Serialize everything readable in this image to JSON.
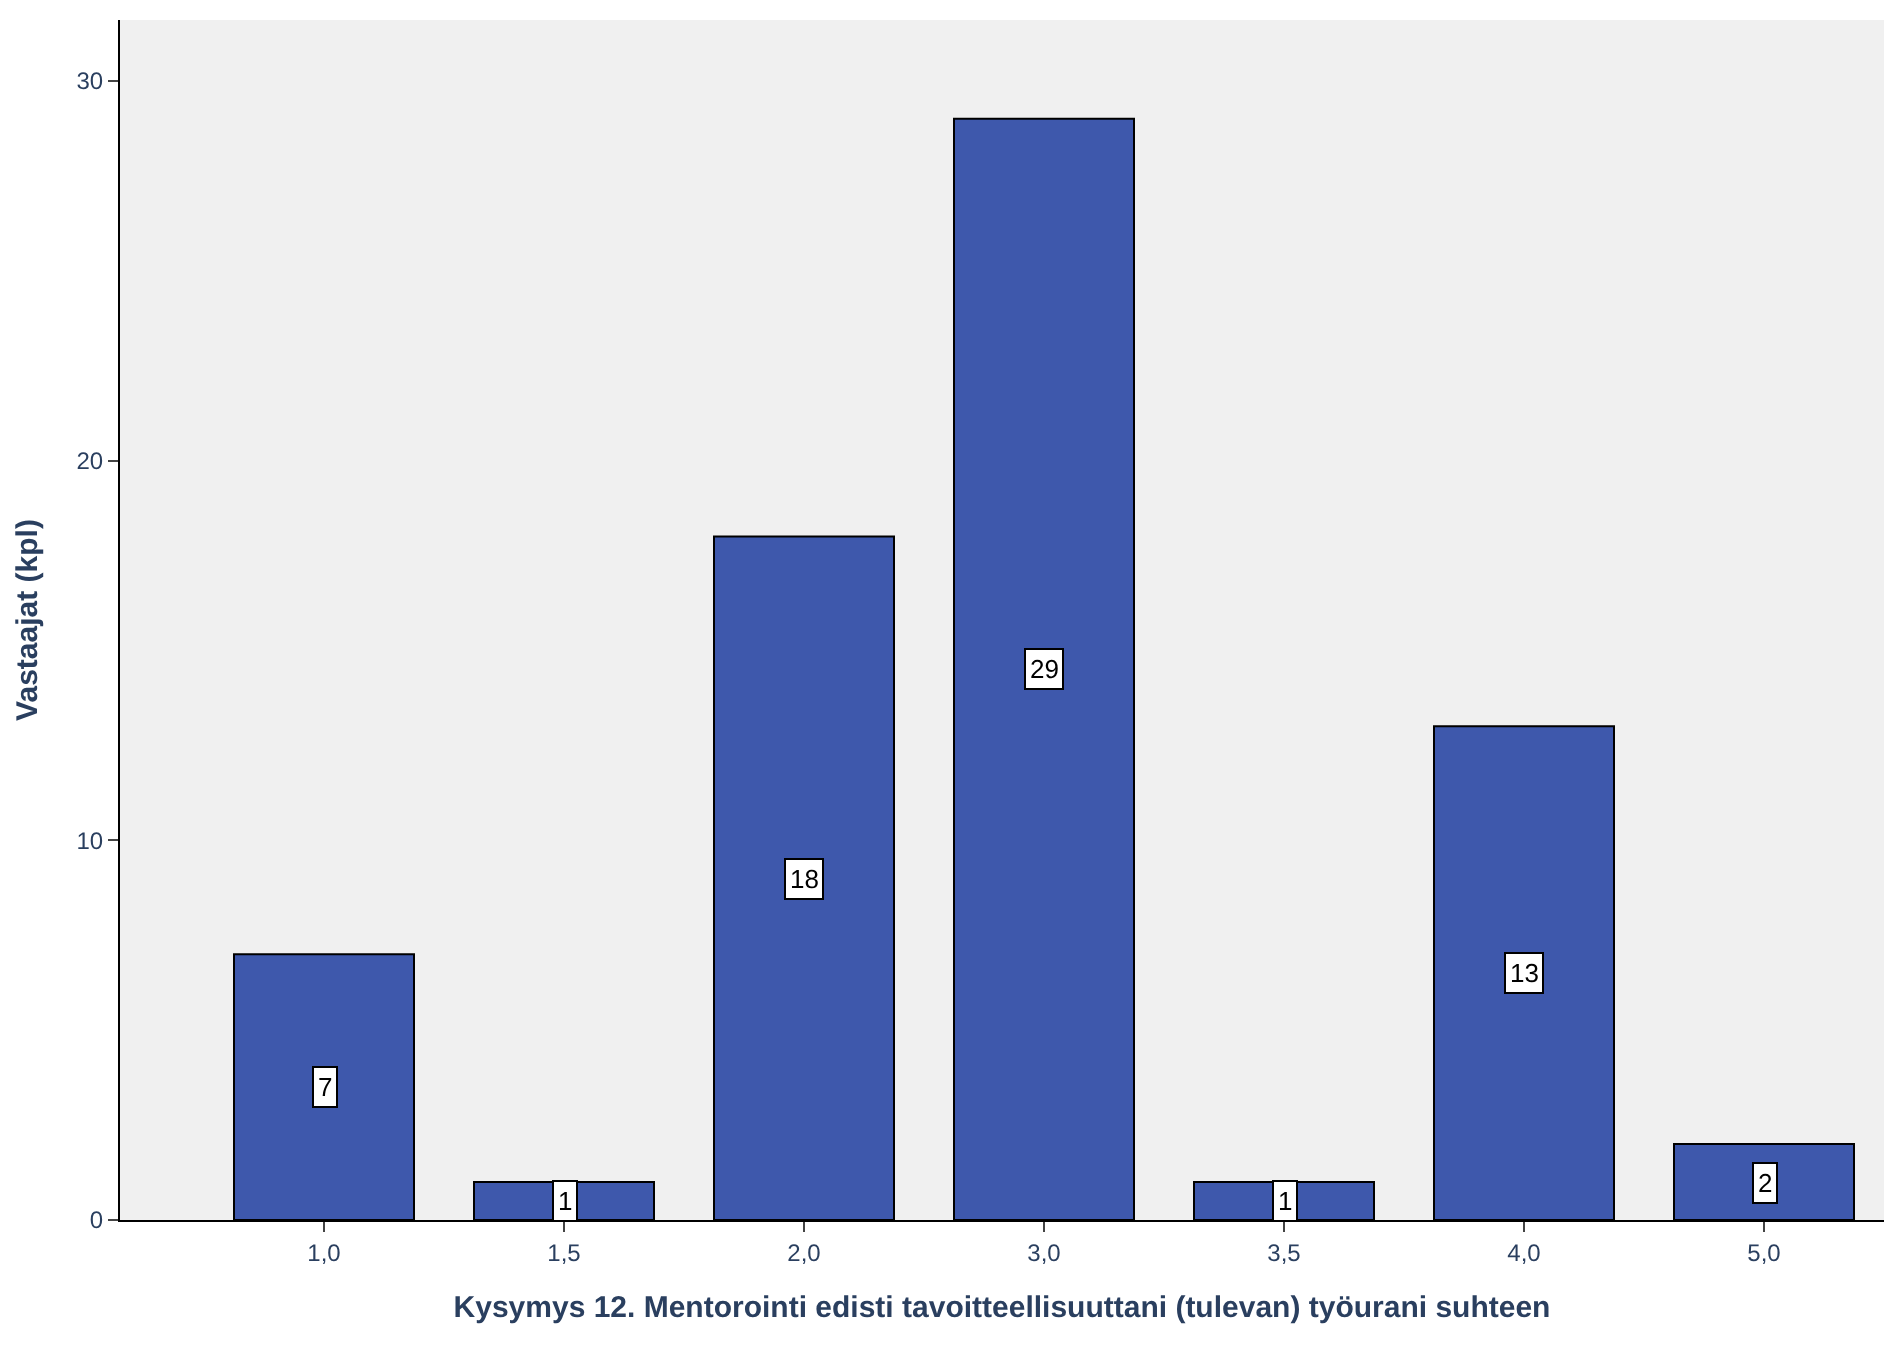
{
  "chart_data": {
    "type": "bar",
    "xlabel": "Kysymys 12. Mentorointi edisti tavoitteellisuuttani (tulevan) työurani suhteen",
    "ylabel": "Vastaajat (kpl)",
    "categories": [
      "1,0",
      "1,5",
      "2,0",
      "3,0",
      "3,5",
      "4,0",
      "5,0"
    ],
    "values": [
      7,
      1,
      18,
      29,
      1,
      13,
      2
    ],
    "color": "#3e58ac",
    "ylim": [
      0,
      31.6
    ],
    "yticks": [
      0,
      10,
      20,
      30
    ],
    "grid": false,
    "legend": false,
    "data_labels": true
  }
}
